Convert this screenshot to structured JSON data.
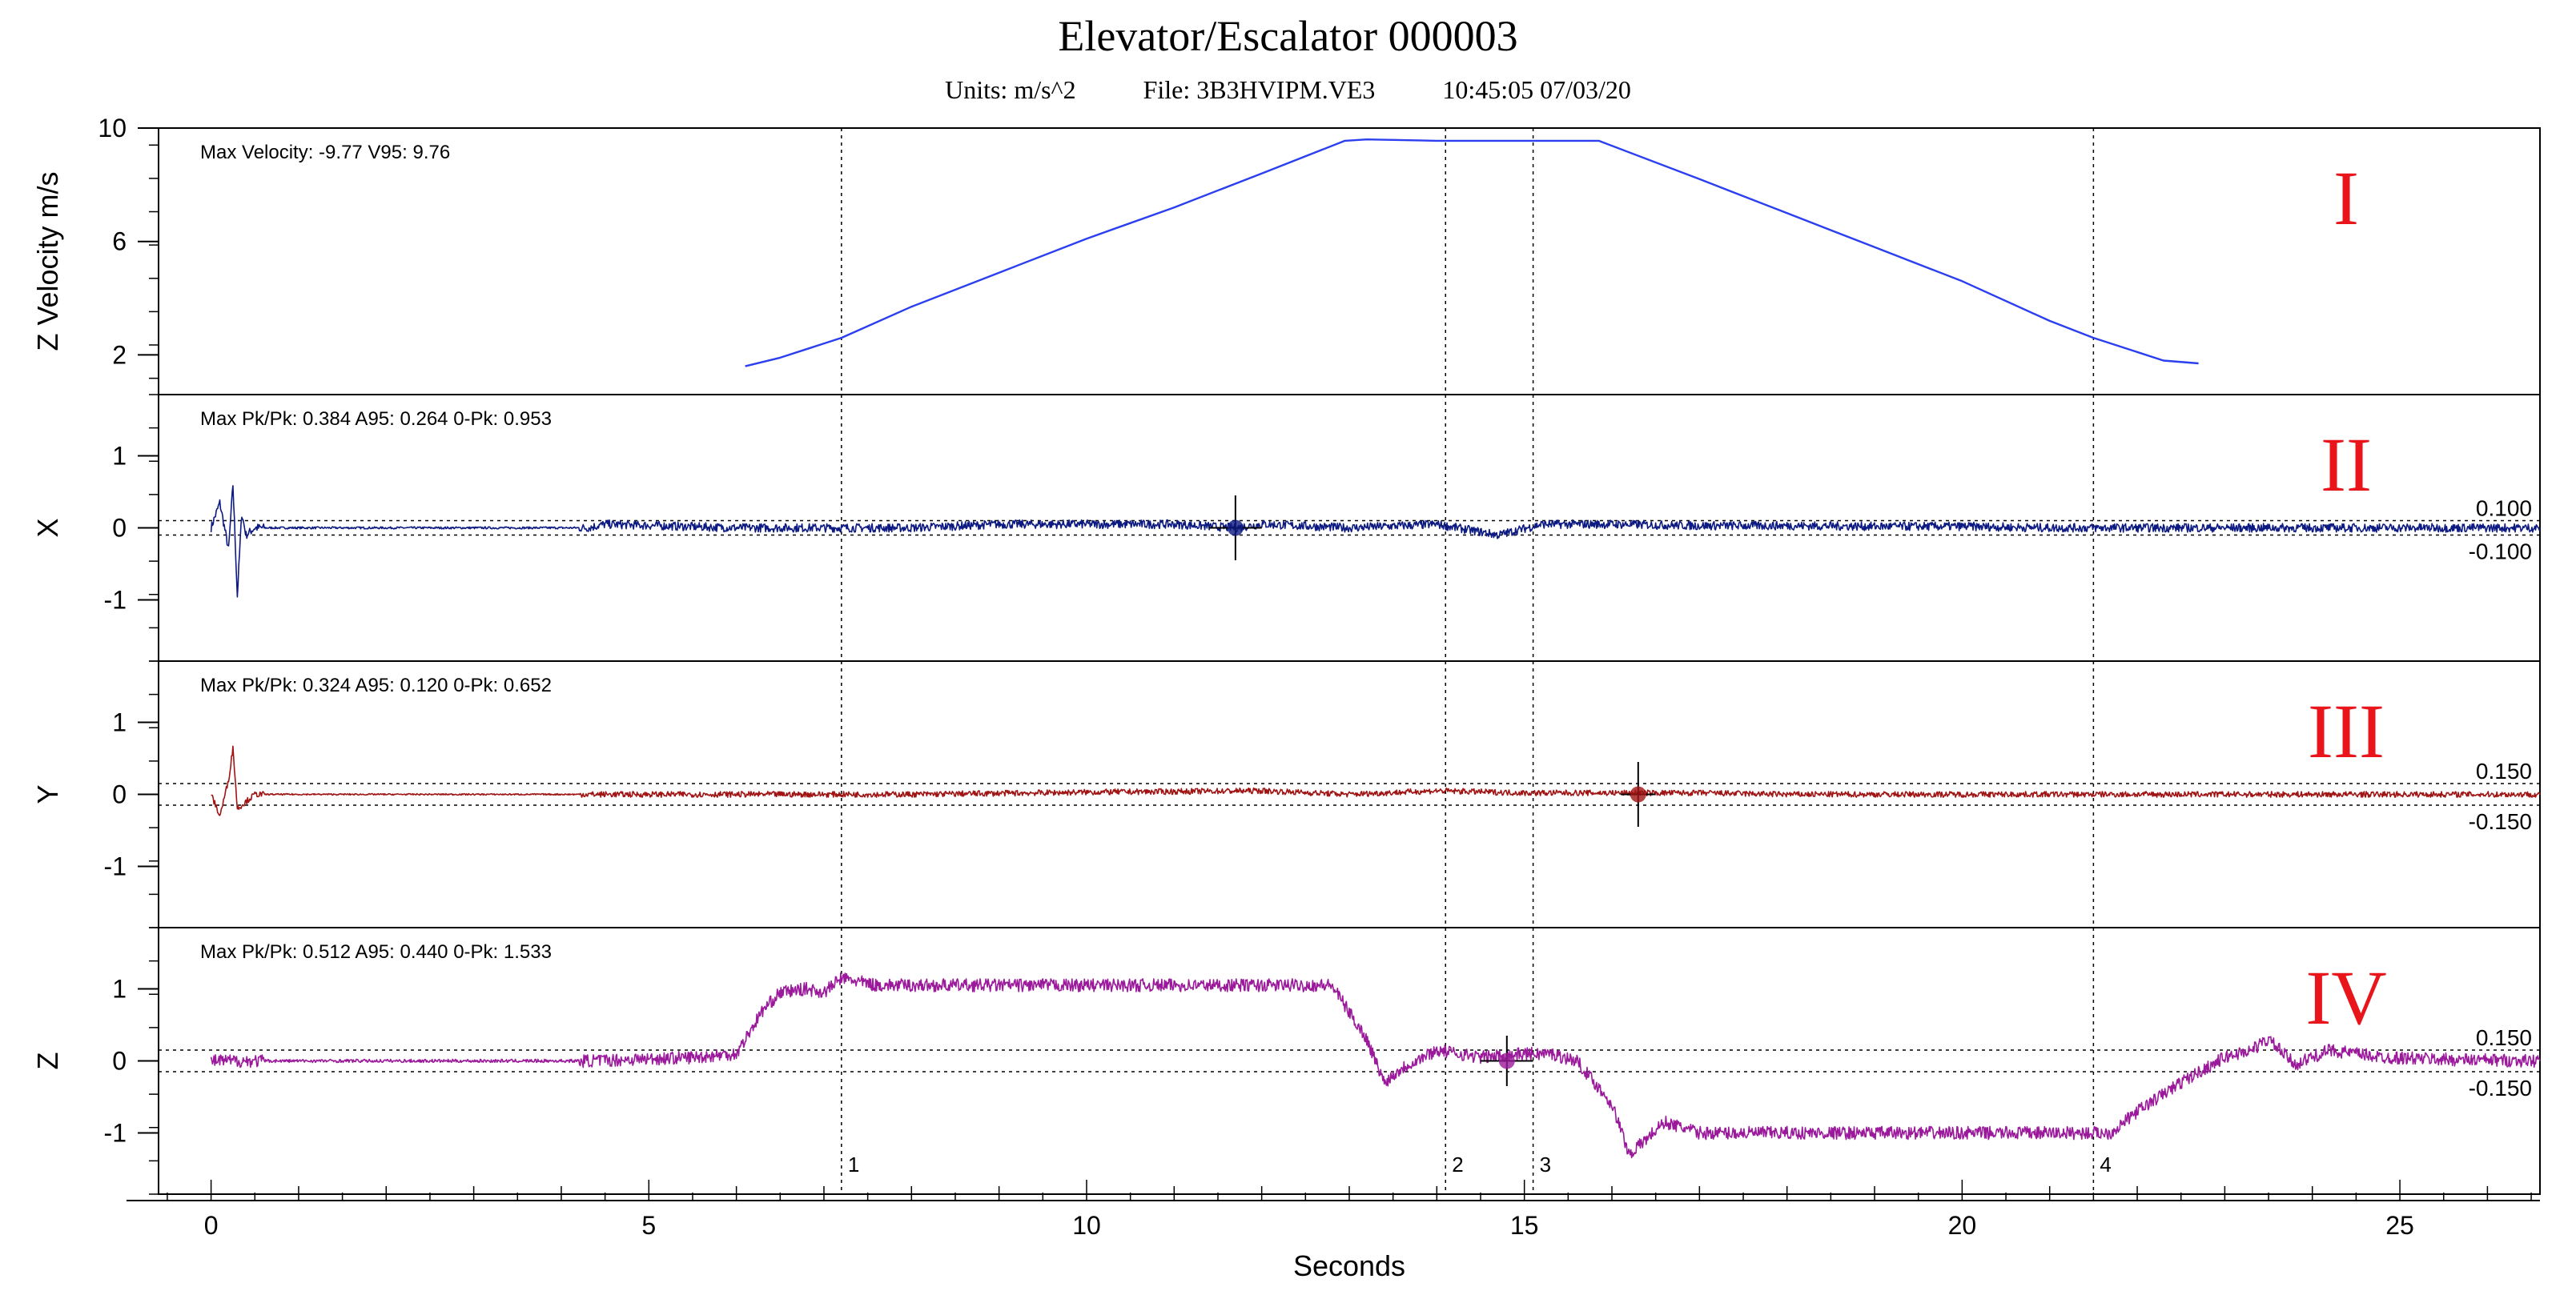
{
  "title": "Elevator/Escalator  000003",
  "subtitle": {
    "units": "Units: m/s^2",
    "file": "File: 3B3HVIPM.VE3",
    "datetime": "10:45:05 07/03/20"
  },
  "chart_data": {
    "type": "line",
    "xlabel": "Seconds",
    "xlim": [
      -0.6,
      26.6
    ],
    "xticks": [
      0,
      5,
      10,
      15,
      20,
      25
    ],
    "xtick_labels": [
      "0",
      "5",
      "10",
      "15",
      "20",
      "25"
    ],
    "markers": [
      {
        "label": "1",
        "x": 7.2
      },
      {
        "label": "2",
        "x": 14.1
      },
      {
        "label": "3",
        "x": 15.1
      },
      {
        "label": "4",
        "x": 21.5
      }
    ],
    "panels": [
      {
        "id": "velocity",
        "roman": "I",
        "ylabel": "Z Velocity m/s",
        "ylim": [
          0.6,
          10
        ],
        "yticks": [
          2,
          6,
          10
        ],
        "ytick_labels": [
          "2",
          "6",
          "10"
        ],
        "stats": "Max Velocity: -9.77  V95: 9.76",
        "color": "#2b3ff0",
        "series": {
          "x": [
            6.1,
            6.5,
            7.2,
            8,
            9,
            10,
            11,
            12,
            12.95,
            13.2,
            14,
            15,
            15.85,
            17,
            18,
            19,
            20,
            21,
            21.5,
            22.3,
            22.7
          ],
          "y": [
            1.6,
            1.9,
            2.6,
            3.7,
            4.9,
            6.1,
            7.2,
            8.4,
            9.55,
            9.6,
            9.55,
            9.55,
            9.55,
            8.2,
            7.0,
            5.8,
            4.6,
            3.2,
            2.6,
            1.8,
            1.7
          ]
        }
      },
      {
        "id": "x",
        "roman": "II",
        "ylabel": "X",
        "ylim": [
          -1.85,
          1.85
        ],
        "yticks": [
          -1,
          0,
          1
        ],
        "ytick_labels": [
          "-1",
          "0",
          "1"
        ],
        "stats": "Max Pk/Pk: 0.384  A95: 0.264  0-Pk: 0.953",
        "color": "#0c1a82",
        "thresholds": [
          0.1,
          -0.1
        ],
        "threshold_labels": [
          "0.100",
          "-0.100"
        ],
        "crosshair": {
          "x": 11.7,
          "y": 0.0,
          "half_x": 0.3,
          "half_y": 0.45
        },
        "series": {
          "x": [
            0,
            0.1,
            0.2,
            0.25,
            0.3,
            0.35,
            0.4,
            0.5,
            4.3,
            4.5,
            6,
            8,
            9,
            10,
            11,
            11.7,
            12,
            13,
            14,
            14.7,
            15.2,
            16,
            17,
            18,
            19,
            20,
            21,
            22,
            23,
            24,
            25,
            26,
            26.6
          ],
          "y": [
            0,
            0.35,
            -0.3,
            0.6,
            -0.95,
            0.2,
            -0.1,
            0,
            0,
            0.05,
            0,
            0,
            0.05,
            0.05,
            0.05,
            0.0,
            0.05,
            0.0,
            0.05,
            -0.1,
            0.05,
            0.05,
            0.03,
            0.03,
            0.02,
            0.02,
            0.0,
            0.0,
            0.0,
            0.0,
            0.0,
            0.0,
            0.0
          ],
          "noise": 0.06
        }
      },
      {
        "id": "y",
        "roman": "III",
        "ylabel": "Y",
        "ylim": [
          -1.85,
          1.85
        ],
        "yticks": [
          -1,
          0,
          1
        ],
        "ytick_labels": [
          "-1",
          "0",
          "1"
        ],
        "stats": "Max Pk/Pk: 0.324  A95: 0.120  0-Pk: 0.652",
        "color": "#a01414",
        "thresholds": [
          0.15,
          -0.15
        ],
        "threshold_labels": [
          "0.150",
          "-0.150"
        ],
        "crosshair": {
          "x": 16.3,
          "y": 0.0,
          "half_x": 0.2,
          "half_y": 0.45
        },
        "series": {
          "x": [
            0,
            0.1,
            0.2,
            0.25,
            0.3,
            0.5,
            4.3,
            6,
            8,
            10,
            12,
            13,
            14,
            15,
            16,
            17,
            18,
            19,
            20,
            21,
            22,
            23,
            24,
            25,
            26,
            26.6
          ],
          "y": [
            0,
            -0.3,
            0.2,
            0.65,
            -0.2,
            0,
            0,
            0,
            0,
            0.03,
            0.05,
            0.0,
            0.05,
            0.02,
            0.02,
            0.02,
            0.0,
            0.0,
            0.0,
            0.0,
            0.0,
            0.0,
            0.0,
            0.0,
            0.0,
            0.0
          ],
          "noise": 0.04
        }
      },
      {
        "id": "z",
        "roman": "IV",
        "ylabel": "Z",
        "ylim": [
          -1.85,
          1.85
        ],
        "yticks": [
          -1,
          0,
          1
        ],
        "ytick_labels": [
          "-1",
          "0",
          "1"
        ],
        "stats": "Max Pk/Pk: 0.512  A95: 0.440  0-Pk: 1.533",
        "color": "#9b1a9b",
        "thresholds": [
          0.15,
          -0.15
        ],
        "threshold_labels": [
          "0.150",
          "-0.150"
        ],
        "crosshair": {
          "x": 14.8,
          "y": 0.0,
          "half_x": 0.3,
          "half_y": 0.35
        },
        "series": {
          "x": [
            0,
            4.3,
            5.5,
            6.0,
            6.3,
            6.5,
            6.8,
            7.0,
            7.2,
            7.6,
            8,
            9,
            10,
            11,
            12,
            12.8,
            13.2,
            13.4,
            13.6,
            14.0,
            14.5,
            15,
            15.3,
            15.6,
            16,
            16.2,
            16.6,
            17,
            18,
            19,
            20,
            21,
            21.7,
            22.0,
            22.5,
            23.0,
            23.3,
            23.5,
            23.8,
            24.2,
            24.8,
            25.5,
            26.6
          ],
          "y": [
            0,
            0,
            0.05,
            0.1,
            0.7,
            0.95,
            1.0,
            0.95,
            1.15,
            1.05,
            1.05,
            1.05,
            1.05,
            1.05,
            1.05,
            1.05,
            0.3,
            -0.3,
            -0.1,
            0.15,
            0.05,
            0.1,
            0.1,
            0.0,
            -0.6,
            -1.3,
            -0.85,
            -1.0,
            -1.0,
            -1.0,
            -1.0,
            -1.0,
            -1.0,
            -0.7,
            -0.3,
            0.05,
            0.15,
            0.3,
            -0.05,
            0.15,
            0.05,
            0.02,
            0.0
          ],
          "noise": 0.09
        }
      }
    ]
  }
}
